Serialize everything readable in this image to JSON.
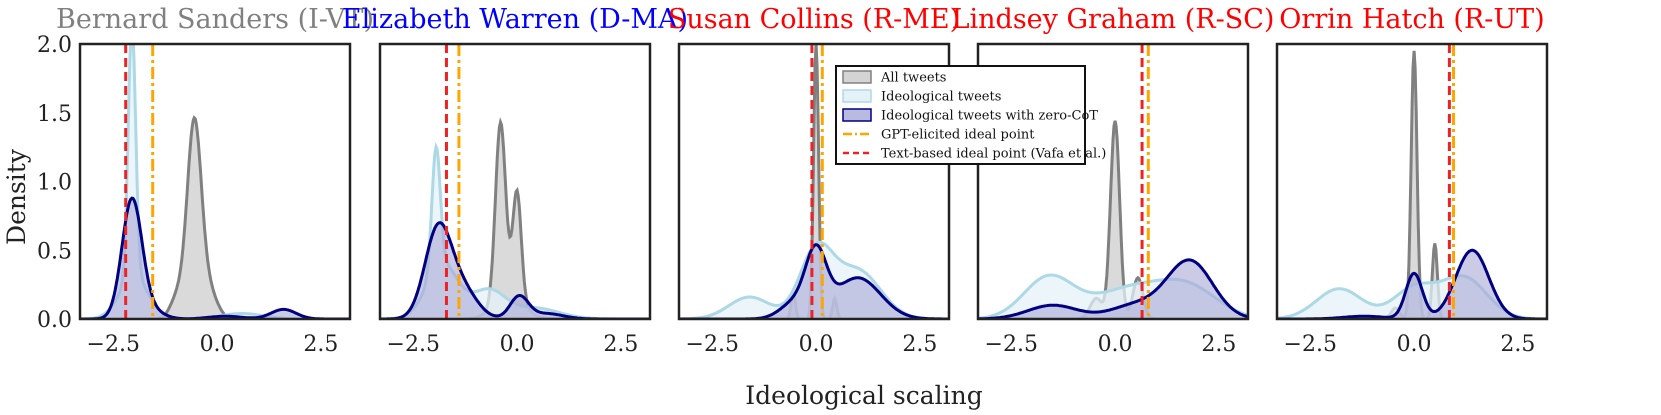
{
  "chart_data": {
    "type": "area",
    "xlabel": "Ideological scaling",
    "ylabel": "Density",
    "xlim": [
      -3.3,
      3.2
    ],
    "ylim": [
      0,
      2.0
    ],
    "xticks": [
      -2.5,
      0.0,
      2.5
    ],
    "xtick_labels": [
      "−2.5",
      "0.0",
      "2.5"
    ],
    "yticks": [
      0.0,
      0.5,
      1.0,
      1.5,
      2.0
    ],
    "ytick_labels": [
      "0.0",
      "0.5",
      "1.0",
      "1.5",
      "2.0"
    ],
    "colors": {
      "all_tweets_fill": "#d4d4d4",
      "all_tweets_line": "#808080",
      "ideological_fill": "#e4f2f8",
      "ideological_line": "#add8e6",
      "zero_cot_fill": "#a9a9d6",
      "zero_cot_line": "#000080",
      "gpt_line": "#ffa500",
      "text_line": "#ee2222",
      "title_gray": "#808080",
      "title_blue": "#0000ff",
      "title_red": "#ff0000"
    },
    "legend": {
      "position": "upper-center (third panel)",
      "entries": [
        {
          "key": "all",
          "label": "All tweets"
        },
        {
          "key": "ideo",
          "label": "Ideological tweets"
        },
        {
          "key": "zero",
          "label": "Ideological tweets with zero-CoT"
        },
        {
          "key": "gpt",
          "label": "GPT-elicited ideal point"
        },
        {
          "key": "text",
          "label": "Text-based ideal point (Vafa et al.)"
        }
      ]
    },
    "panels": [
      {
        "title": "Bernard Sanders (I-VT)",
        "title_color": "#808080",
        "gpt_point": -1.55,
        "text_point": -2.2,
        "all_tweets": [
          [
            -0.95,
            0.16,
            0.17
          ],
          [
            -0.55,
            1.41,
            0.17
          ],
          [
            -0.2,
            0.2,
            0.2
          ]
        ],
        "ideological": [
          [
            -2.05,
            1.85,
            0.09
          ],
          [
            -2.0,
            0.3,
            0.35
          ],
          [
            0.6,
            0.04,
            0.5
          ]
        ],
        "zero_cot": [
          [
            -2.05,
            0.86,
            0.24
          ],
          [
            -1.6,
            0.06,
            0.3
          ],
          [
            1.6,
            0.07,
            0.3
          ],
          [
            0.2,
            0.02,
            0.4
          ]
        ]
      },
      {
        "title": "Elizabeth Warren (D-MA)",
        "title_color": "#0000ff",
        "gpt_point": -1.4,
        "text_point": -1.7,
        "all_tweets": [
          [
            -0.4,
            1.25,
            0.12
          ],
          [
            0.0,
            0.75,
            0.1
          ],
          [
            -0.2,
            0.22,
            0.32
          ]
        ],
        "ideological": [
          [
            -1.95,
            0.88,
            0.1
          ],
          [
            -1.8,
            0.4,
            0.38
          ],
          [
            -0.7,
            0.2,
            0.4
          ],
          [
            0.4,
            0.08,
            0.6
          ]
        ],
        "zero_cot": [
          [
            -1.9,
            0.65,
            0.32
          ],
          [
            -1.3,
            0.2,
            0.35
          ],
          [
            0.05,
            0.16,
            0.22
          ],
          [
            0.7,
            0.04,
            0.4
          ]
        ]
      },
      {
        "title": "Susan Collins (R-ME)",
        "title_color": "#ff0000",
        "gpt_point": 0.15,
        "text_point": -0.1,
        "all_tweets": [
          [
            0.0,
            2.0,
            0.06
          ],
          [
            -0.55,
            0.2,
            0.05
          ],
          [
            0.45,
            0.15,
            0.05
          ]
        ],
        "ideological": [
          [
            -1.6,
            0.16,
            0.5
          ],
          [
            0.0,
            0.48,
            0.4
          ],
          [
            1.0,
            0.35,
            0.55
          ]
        ],
        "zero_cot": [
          [
            -0.5,
            0.12,
            0.35
          ],
          [
            0.0,
            0.44,
            0.25
          ],
          [
            1.0,
            0.3,
            0.55
          ]
        ]
      },
      {
        "title": "Lindsey Graham (R-SC)",
        "title_color": "#ff0000",
        "gpt_point": 0.8,
        "text_point": 0.65,
        "all_tweets": [
          [
            0.0,
            1.44,
            0.11
          ],
          [
            -0.45,
            0.15,
            0.15
          ],
          [
            0.55,
            0.3,
            0.12
          ]
        ],
        "ideological": [
          [
            -1.6,
            0.3,
            0.6
          ],
          [
            0.4,
            0.22,
            0.9
          ],
          [
            1.8,
            0.2,
            0.7
          ]
        ],
        "zero_cot": [
          [
            -1.5,
            0.1,
            0.6
          ],
          [
            1.8,
            0.42,
            0.55
          ],
          [
            0.5,
            0.1,
            0.6
          ]
        ]
      },
      {
        "title": "Orrin Hatch (R-UT)",
        "title_color": "#ff0000",
        "gpt_point": 0.95,
        "text_point": 0.85,
        "all_tweets": [
          [
            0.0,
            1.95,
            0.07
          ],
          [
            0.5,
            0.55,
            0.06
          ],
          [
            -0.45,
            0.08,
            0.1
          ]
        ],
        "ideological": [
          [
            -1.8,
            0.22,
            0.55
          ],
          [
            0.0,
            0.22,
            0.5
          ],
          [
            1.2,
            0.3,
            0.55
          ]
        ],
        "zero_cot": [
          [
            0.0,
            0.33,
            0.2
          ],
          [
            1.4,
            0.5,
            0.4
          ],
          [
            -1.2,
            0.02,
            0.5
          ]
        ]
      }
    ]
  }
}
